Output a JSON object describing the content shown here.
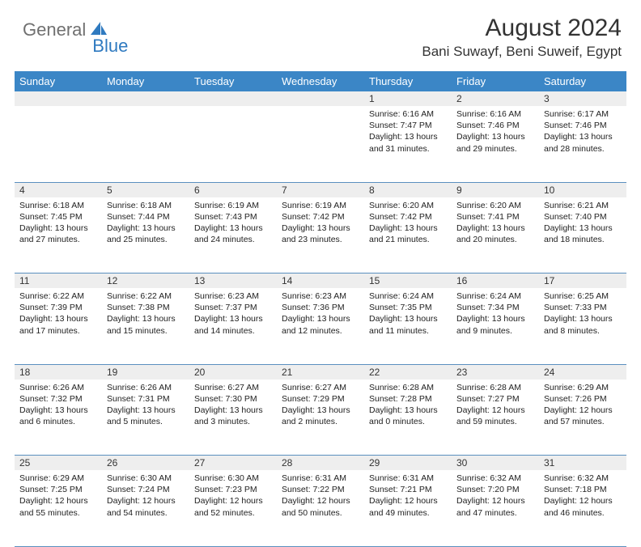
{
  "logo": {
    "part1": "General",
    "part2": "Blue"
  },
  "title": "August 2024",
  "location": "Bani Suwayf, Beni Suweif, Egypt",
  "colors": {
    "header_bg": "#3b86c6",
    "header_text": "#ffffff",
    "daynum_bg": "#eeeeee",
    "text": "#222222",
    "rule": "#5a8fbf",
    "logo_gray": "#707070",
    "logo_blue": "#2f7ac0"
  },
  "day_labels": [
    "Sunday",
    "Monday",
    "Tuesday",
    "Wednesday",
    "Thursday",
    "Friday",
    "Saturday"
  ],
  "weeks": [
    [
      null,
      null,
      null,
      null,
      {
        "n": "1",
        "sr": "6:16 AM",
        "ss": "7:47 PM",
        "dl": "13 hours and 31 minutes."
      },
      {
        "n": "2",
        "sr": "6:16 AM",
        "ss": "7:46 PM",
        "dl": "13 hours and 29 minutes."
      },
      {
        "n": "3",
        "sr": "6:17 AM",
        "ss": "7:46 PM",
        "dl": "13 hours and 28 minutes."
      }
    ],
    [
      {
        "n": "4",
        "sr": "6:18 AM",
        "ss": "7:45 PM",
        "dl": "13 hours and 27 minutes."
      },
      {
        "n": "5",
        "sr": "6:18 AM",
        "ss": "7:44 PM",
        "dl": "13 hours and 25 minutes."
      },
      {
        "n": "6",
        "sr": "6:19 AM",
        "ss": "7:43 PM",
        "dl": "13 hours and 24 minutes."
      },
      {
        "n": "7",
        "sr": "6:19 AM",
        "ss": "7:42 PM",
        "dl": "13 hours and 23 minutes."
      },
      {
        "n": "8",
        "sr": "6:20 AM",
        "ss": "7:42 PM",
        "dl": "13 hours and 21 minutes."
      },
      {
        "n": "9",
        "sr": "6:20 AM",
        "ss": "7:41 PM",
        "dl": "13 hours and 20 minutes."
      },
      {
        "n": "10",
        "sr": "6:21 AM",
        "ss": "7:40 PM",
        "dl": "13 hours and 18 minutes."
      }
    ],
    [
      {
        "n": "11",
        "sr": "6:22 AM",
        "ss": "7:39 PM",
        "dl": "13 hours and 17 minutes."
      },
      {
        "n": "12",
        "sr": "6:22 AM",
        "ss": "7:38 PM",
        "dl": "13 hours and 15 minutes."
      },
      {
        "n": "13",
        "sr": "6:23 AM",
        "ss": "7:37 PM",
        "dl": "13 hours and 14 minutes."
      },
      {
        "n": "14",
        "sr": "6:23 AM",
        "ss": "7:36 PM",
        "dl": "13 hours and 12 minutes."
      },
      {
        "n": "15",
        "sr": "6:24 AM",
        "ss": "7:35 PM",
        "dl": "13 hours and 11 minutes."
      },
      {
        "n": "16",
        "sr": "6:24 AM",
        "ss": "7:34 PM",
        "dl": "13 hours and 9 minutes."
      },
      {
        "n": "17",
        "sr": "6:25 AM",
        "ss": "7:33 PM",
        "dl": "13 hours and 8 minutes."
      }
    ],
    [
      {
        "n": "18",
        "sr": "6:26 AM",
        "ss": "7:32 PM",
        "dl": "13 hours and 6 minutes."
      },
      {
        "n": "19",
        "sr": "6:26 AM",
        "ss": "7:31 PM",
        "dl": "13 hours and 5 minutes."
      },
      {
        "n": "20",
        "sr": "6:27 AM",
        "ss": "7:30 PM",
        "dl": "13 hours and 3 minutes."
      },
      {
        "n": "21",
        "sr": "6:27 AM",
        "ss": "7:29 PM",
        "dl": "13 hours and 2 minutes."
      },
      {
        "n": "22",
        "sr": "6:28 AM",
        "ss": "7:28 PM",
        "dl": "13 hours and 0 minutes."
      },
      {
        "n": "23",
        "sr": "6:28 AM",
        "ss": "7:27 PM",
        "dl": "12 hours and 59 minutes."
      },
      {
        "n": "24",
        "sr": "6:29 AM",
        "ss": "7:26 PM",
        "dl": "12 hours and 57 minutes."
      }
    ],
    [
      {
        "n": "25",
        "sr": "6:29 AM",
        "ss": "7:25 PM",
        "dl": "12 hours and 55 minutes."
      },
      {
        "n": "26",
        "sr": "6:30 AM",
        "ss": "7:24 PM",
        "dl": "12 hours and 54 minutes."
      },
      {
        "n": "27",
        "sr": "6:30 AM",
        "ss": "7:23 PM",
        "dl": "12 hours and 52 minutes."
      },
      {
        "n": "28",
        "sr": "6:31 AM",
        "ss": "7:22 PM",
        "dl": "12 hours and 50 minutes."
      },
      {
        "n": "29",
        "sr": "6:31 AM",
        "ss": "7:21 PM",
        "dl": "12 hours and 49 minutes."
      },
      {
        "n": "30",
        "sr": "6:32 AM",
        "ss": "7:20 PM",
        "dl": "12 hours and 47 minutes."
      },
      {
        "n": "31",
        "sr": "6:32 AM",
        "ss": "7:18 PM",
        "dl": "12 hours and 46 minutes."
      }
    ]
  ],
  "labels": {
    "sunrise": "Sunrise:",
    "sunset": "Sunset:",
    "daylight": "Daylight:"
  }
}
